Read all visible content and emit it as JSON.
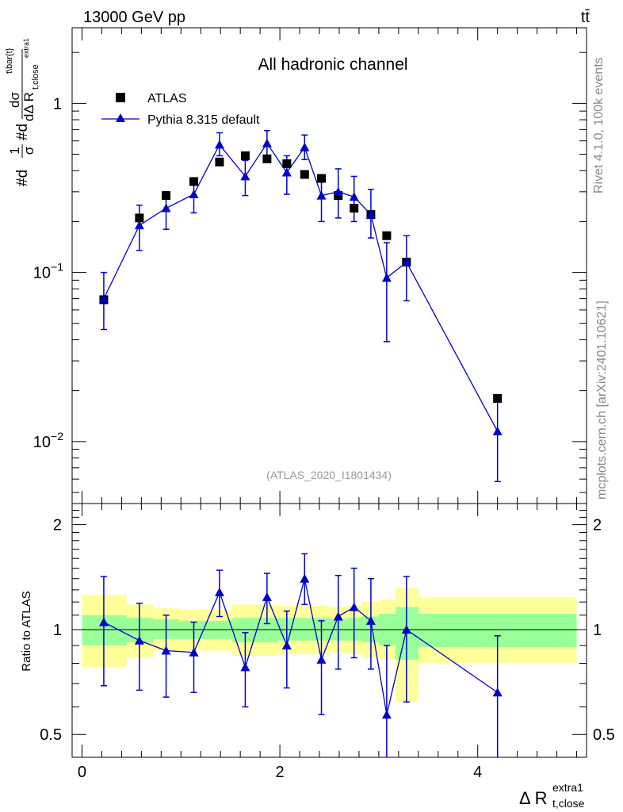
{
  "header": {
    "energy_label": "13000 GeV pp",
    "process_label": "tt̄"
  },
  "side_text": {
    "rivet": "Rivet 4.1.0,  100k events",
    "mcplots": "mcplots.cern.ch [arXiv:2401.10621]"
  },
  "chart_data": [
    {
      "type": "scatter",
      "panel": "main",
      "title": "All hadronic channel",
      "analysis_label": "(ATLAS_2020_I1801434)",
      "ylabel": "#d1/σ#d dσ^{t\\bar{t}} / dΔ R_{t,close}^{extra1}",
      "ylabel_parts": {
        "pre": "#d",
        "frac1_num": "1",
        "frac1_den": "σ",
        "mid": "#d",
        "frac2_num": "dσ",
        "frac2_num_sup": "t\\bar{t}",
        "frac2_den": "dΔ R",
        "frac2_den_sub": "t,close",
        "frac2_den_sup": "extra1"
      },
      "yscale": "log",
      "ylim": [
        0.0043,
        2.8
      ],
      "xlim": [
        -0.1,
        5.1
      ],
      "yticks": [
        {
          "v": 0.01,
          "base": "10",
          "exp": "−2"
        },
        {
          "v": 0.1,
          "base": "10",
          "exp": "−1"
        },
        {
          "v": 1,
          "base": "1",
          "exp": ""
        }
      ],
      "legend": [
        "ATLAS",
        "Pythia 8.315 default"
      ],
      "legend_position": "top-left",
      "series": [
        {
          "name": "ATLAS",
          "marker": "square",
          "color": "#000000",
          "x": [
            0.22,
            0.58,
            0.85,
            1.13,
            1.39,
            1.65,
            1.87,
            2.07,
            2.25,
            2.42,
            2.59,
            2.75,
            2.92,
            3.08,
            3.28,
            4.2
          ],
          "y": [
            0.069,
            0.21,
            0.285,
            0.345,
            0.45,
            0.49,
            0.47,
            0.44,
            0.38,
            0.36,
            0.285,
            0.24,
            0.22,
            0.165,
            0.115,
            0.018
          ]
        },
        {
          "name": "Pythia 8.315 default",
          "marker": "triangle",
          "color": "#0000cc",
          "x": [
            0.22,
            0.58,
            0.85,
            1.13,
            1.39,
            1.65,
            1.87,
            2.07,
            2.25,
            2.42,
            2.59,
            2.75,
            2.92,
            3.08,
            3.28,
            4.2
          ],
          "y": [
            0.07,
            0.19,
            0.24,
            0.29,
            0.57,
            0.37,
            0.58,
            0.39,
            0.55,
            0.285,
            0.3,
            0.28,
            0.22,
            0.093,
            0.115,
            0.0115
          ],
          "ylow": [
            0.046,
            0.135,
            0.18,
            0.225,
            0.49,
            0.285,
            0.485,
            0.29,
            0.465,
            0.2,
            0.21,
            0.2,
            0.16,
            0.039,
            0.068,
            0.0058
          ],
          "yhigh": [
            0.1,
            0.25,
            0.3,
            0.355,
            0.67,
            0.46,
            0.69,
            0.49,
            0.65,
            0.37,
            0.41,
            0.37,
            0.31,
            0.15,
            0.165,
            0.0178
          ]
        }
      ]
    },
    {
      "type": "scatter",
      "panel": "ratio",
      "ylabel": "Ratio to ATLAS",
      "xlabel_main": "Δ R",
      "xlabel_sup": "extra1",
      "xlabel_sub": "t,close",
      "yscale": "log",
      "ylim": [
        0.43,
        2.3
      ],
      "xlim": [
        -0.1,
        5.1
      ],
      "yticks": [
        0.5,
        1,
        2
      ],
      "xticks": [
        0,
        2,
        4
      ],
      "bands": {
        "edges": [
          0.0,
          0.3,
          0.45,
          0.72,
          0.98,
          1.26,
          1.52,
          1.75,
          1.98,
          2.16,
          2.33,
          2.5,
          2.67,
          2.83,
          3.0,
          3.17,
          3.4,
          5.0
        ],
        "yellow_low": [
          0.78,
          0.78,
          0.83,
          0.87,
          0.87,
          0.87,
          0.84,
          0.84,
          0.85,
          0.85,
          0.85,
          0.86,
          0.85,
          0.83,
          0.82,
          0.62,
          0.8
        ],
        "yellow_high": [
          1.26,
          1.26,
          1.18,
          1.15,
          1.14,
          1.14,
          1.18,
          1.18,
          1.17,
          1.17,
          1.17,
          1.16,
          1.17,
          1.2,
          1.22,
          1.32,
          1.24
        ],
        "green_low": [
          0.9,
          0.9,
          0.92,
          0.94,
          0.94,
          0.94,
          0.92,
          0.92,
          0.93,
          0.93,
          0.93,
          0.93,
          0.93,
          0.92,
          0.9,
          0.82,
          0.89
        ],
        "green_high": [
          1.1,
          1.1,
          1.08,
          1.07,
          1.06,
          1.06,
          1.08,
          1.08,
          1.08,
          1.08,
          1.08,
          1.07,
          1.08,
          1.09,
          1.11,
          1.16,
          1.11
        ]
      },
      "series": [
        {
          "name": "Pythia 8.315 default / ATLAS",
          "color": "#0000cc",
          "x": [
            0.22,
            0.58,
            0.85,
            1.13,
            1.39,
            1.65,
            1.87,
            2.07,
            2.25,
            2.42,
            2.59,
            2.75,
            2.92,
            3.08,
            3.28,
            4.2
          ],
          "y": [
            1.05,
            0.93,
            0.87,
            0.86,
            1.28,
            0.78,
            1.24,
            0.9,
            1.4,
            0.82,
            1.09,
            1.16,
            1.06,
            0.57,
            1.0,
            0.66
          ],
          "ylow": [
            0.69,
            0.67,
            0.64,
            0.66,
            1.09,
            0.6,
            1.04,
            0.68,
            1.18,
            0.57,
            0.77,
            0.83,
            0.77,
            0.24,
            0.62,
            0.33
          ],
          "yhigh": [
            1.42,
            1.19,
            1.1,
            1.05,
            1.48,
            0.98,
            1.45,
            1.13,
            1.65,
            1.06,
            1.43,
            1.5,
            1.4,
            0.9,
            1.42,
            0.96
          ]
        }
      ]
    }
  ]
}
